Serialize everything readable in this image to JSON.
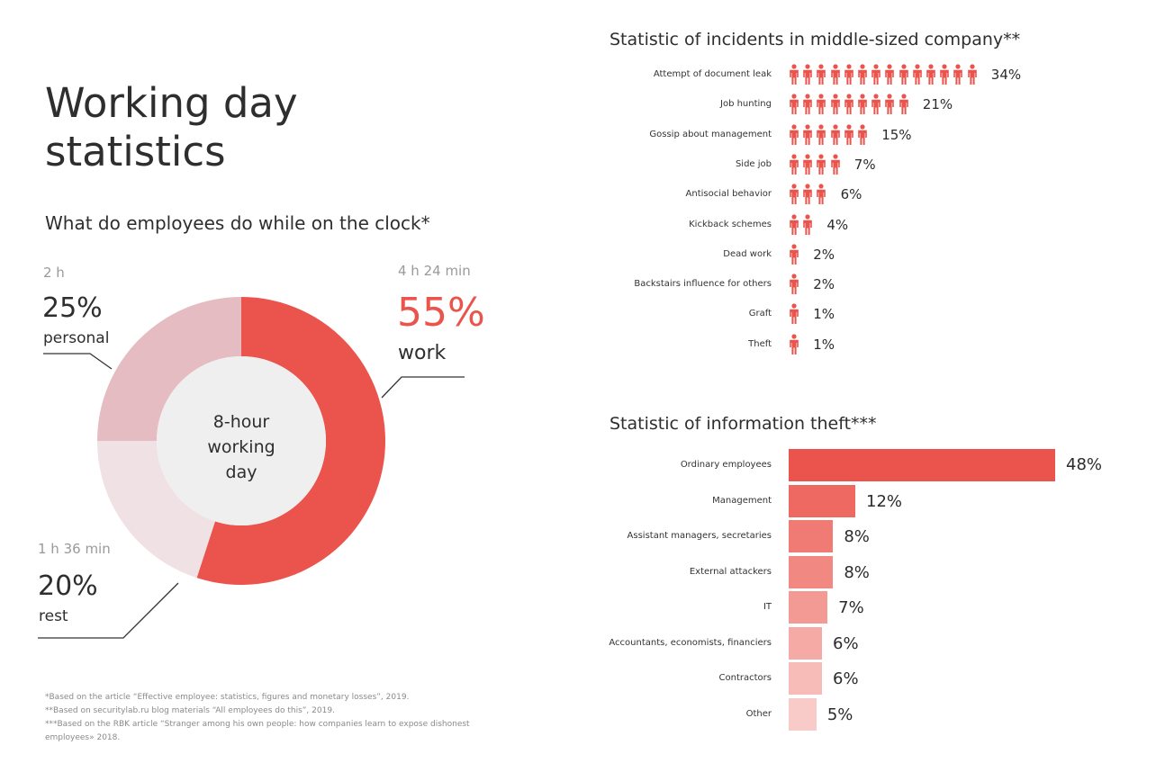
{
  "title_line1": "Working day",
  "title_line2": "statistics",
  "subtitle": "What do employees do while on the clock*",
  "donut": {
    "center_line1": "8-hour",
    "center_line2": "working",
    "center_line3": "day",
    "segments": [
      {
        "key": "work",
        "time": "4 h 24 min",
        "pct_text": "55%",
        "name": "work",
        "value": 55,
        "color": "#ea544c"
      },
      {
        "key": "rest",
        "time": "1 h 36 min",
        "pct_text": "20%",
        "name": "rest",
        "value": 20,
        "color": "#efe1e4"
      },
      {
        "key": "personal",
        "time": "2 h",
        "pct_text": "25%",
        "name": "personal",
        "value": 25,
        "color": "#e5bcc2"
      }
    ],
    "center_color": "#efefef"
  },
  "footnotes": [
    "*Based on the article “Effective employee: statistics, figures and monetary losses”, 2019.",
    "**Based on securitylab.ru  blog materials “All employees  do this”, 2019.",
    "***Based on the RBK article  “Stranger among his own people: how companies learn to expose dishonest employees» 2018."
  ],
  "chart_data": [
    {
      "type": "bar",
      "title": "Statistic of incidents in middle-sized company**",
      "categories": [
        "Attempt of document leak",
        "Job hunting",
        "Gossip about management",
        "Side job",
        "Antisocial behavior",
        "Kickback schemes",
        "Dead work",
        "Backstairs influence for others",
        "Graft",
        "Theft"
      ],
      "values": [
        34,
        21,
        15,
        7,
        6,
        4,
        2,
        2,
        1,
        1
      ],
      "value_labels": [
        "34%",
        "21%",
        "15%",
        "7%",
        "6%",
        "4%",
        "2%",
        "2%",
        "1%",
        "1%"
      ],
      "icon_counts": [
        14,
        9,
        6,
        4,
        3,
        2,
        1,
        1,
        1,
        1
      ],
      "icon": "person-icon",
      "color": "#ea544c"
    },
    {
      "type": "bar",
      "title": "Statistic of information theft***",
      "categories": [
        "Ordinary employees",
        "Management",
        "Assistant managers, secretaries",
        "External attackers",
        "IT",
        "Accountants, economists, financiers",
        "Contractors",
        "Other"
      ],
      "values": [
        48,
        12,
        8,
        8,
        7,
        6,
        6,
        5
      ],
      "value_labels": [
        "48%",
        "12%",
        "8%",
        "8%",
        "7%",
        "6%",
        "6%",
        "5%"
      ],
      "colors": [
        "#ea544c",
        "#ed6961",
        "#ef7b74",
        "#f18882",
        "#f39a95",
        "#f5aaa6",
        "#f7bcb8",
        "#f9cbc8"
      ]
    }
  ]
}
